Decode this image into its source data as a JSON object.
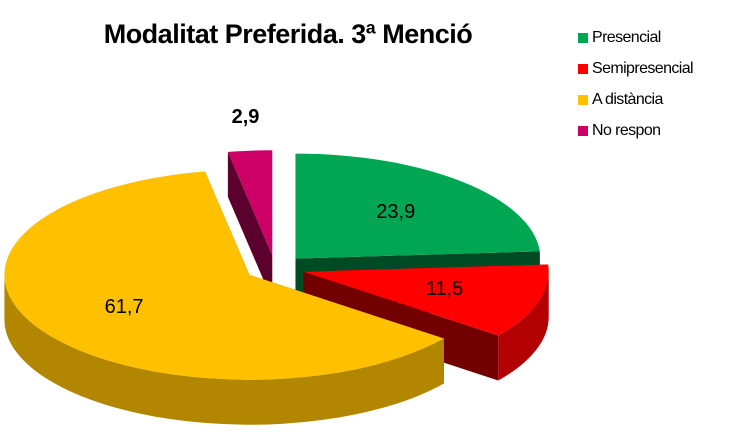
{
  "chart_data": {
    "type": "pie3d",
    "title": "Modalitat Preferida. 3ª Menció",
    "categories": [
      "Presencial",
      "Semipresencial",
      "A distància",
      "No respon"
    ],
    "values": [
      23.9,
      11.5,
      61.7,
      2.9
    ],
    "value_labels": [
      "23,9",
      "11,5",
      "61,7",
      "2,9"
    ],
    "colors": [
      "#00a651",
      "#ff0000",
      "#ffc000",
      "#cc0066"
    ]
  }
}
